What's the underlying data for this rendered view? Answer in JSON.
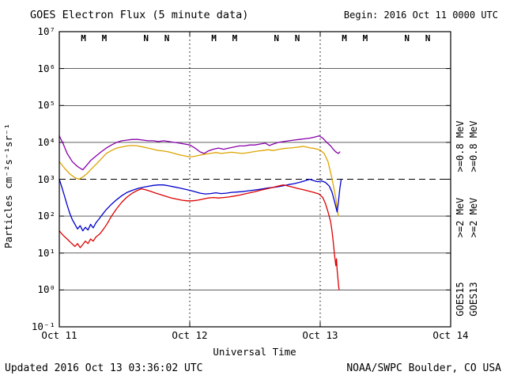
{
  "header": {
    "title": "GOES Electron Flux (5 minute data)",
    "begin_label": "Begin: 2016 Oct 11 0000 UTC"
  },
  "footer": {
    "updated": "Updated 2016 Oct 13 03:36:02 UTC",
    "credit": "NOAA/SWPC Boulder, CO USA"
  },
  "axes": {
    "ylabel": "Particles cm⁻²s⁻¹sr⁻¹",
    "xlabel": "Universal Time",
    "y_ticks": [
      "10⁷",
      "10⁶",
      "10⁵",
      "10⁴",
      "10³",
      "10²",
      "10¹",
      "10⁰",
      "10⁻¹"
    ],
    "x_ticks": [
      "Oct 11",
      "Oct 12",
      "Oct 13",
      "Oct 14"
    ]
  },
  "legend": {
    "goes15": {
      "label": "GOES15",
      "e08": ">=0.8 MeV",
      "e2": ">=2 MeV",
      "e08_color": "#8800aa",
      "e2_color": "#0000cc"
    },
    "goes13": {
      "label": "GOES13",
      "e08": ">=0.8 MeV",
      "e2": ">=2 MeV",
      "e08_color": "#dda400",
      "e2_color": "#dd0000"
    }
  },
  "chart_data": {
    "type": "line",
    "title": "GOES Electron Flux (5 minute data)",
    "xlabel": "Universal Time",
    "ylabel": "Particles cm^-2 s^-1 sr^-1",
    "x_span_days": 3,
    "x_tick_labels": [
      "Oct 11",
      "Oct 12",
      "Oct 13",
      "Oct 14"
    ],
    "y_scale": "log10",
    "ylog_range": [
      -1,
      7
    ],
    "ylim": [
      0.1,
      10000000
    ],
    "threshold": 1000,
    "grid": true,
    "legend_position": "right",
    "series": [
      {
        "name": "GOES15 >=0.8 MeV",
        "color": "#8800aa",
        "points": [
          [
            0.0,
            15000
          ],
          [
            0.03,
            9000
          ],
          [
            0.06,
            5000
          ],
          [
            0.1,
            3000
          ],
          [
            0.14,
            2200
          ],
          [
            0.18,
            1800
          ],
          [
            0.21,
            2400
          ],
          [
            0.24,
            3200
          ],
          [
            0.28,
            4200
          ],
          [
            0.32,
            5500
          ],
          [
            0.36,
            7000
          ],
          [
            0.4,
            8500
          ],
          [
            0.44,
            10000
          ],
          [
            0.48,
            11000
          ],
          [
            0.52,
            11500
          ],
          [
            0.56,
            12000
          ],
          [
            0.6,
            12000
          ],
          [
            0.64,
            11500
          ],
          [
            0.68,
            11000
          ],
          [
            0.72,
            11000
          ],
          [
            0.76,
            10500
          ],
          [
            0.8,
            11000
          ],
          [
            0.84,
            10500
          ],
          [
            0.88,
            10000
          ],
          [
            0.92,
            9500
          ],
          [
            0.96,
            9000
          ],
          [
            1.0,
            8500
          ],
          [
            1.04,
            7000
          ],
          [
            1.08,
            5500
          ],
          [
            1.11,
            5000
          ],
          [
            1.14,
            5800
          ],
          [
            1.18,
            6500
          ],
          [
            1.22,
            7000
          ],
          [
            1.26,
            6500
          ],
          [
            1.3,
            7000
          ],
          [
            1.34,
            7500
          ],
          [
            1.38,
            8000
          ],
          [
            1.42,
            8000
          ],
          [
            1.46,
            8500
          ],
          [
            1.5,
            8500
          ],
          [
            1.54,
            9000
          ],
          [
            1.58,
            9500
          ],
          [
            1.61,
            8200
          ],
          [
            1.64,
            9000
          ],
          [
            1.68,
            10000
          ],
          [
            1.72,
            10500
          ],
          [
            1.76,
            11000
          ],
          [
            1.8,
            11500
          ],
          [
            1.84,
            12000
          ],
          [
            1.88,
            12500
          ],
          [
            1.92,
            13000
          ],
          [
            1.96,
            14000
          ],
          [
            1.99,
            15000
          ],
          [
            2.02,
            13000
          ],
          [
            2.05,
            10000
          ],
          [
            2.08,
            8000
          ],
          [
            2.1,
            6500
          ],
          [
            2.12,
            5500
          ],
          [
            2.14,
            5000
          ],
          [
            2.15,
            5500
          ]
        ]
      },
      {
        "name": "GOES13 >=0.8 MeV",
        "color": "#dda400",
        "points": [
          [
            0.0,
            3000
          ],
          [
            0.04,
            2000
          ],
          [
            0.08,
            1400
          ],
          [
            0.12,
            1100
          ],
          [
            0.15,
            1000
          ],
          [
            0.18,
            1150
          ],
          [
            0.21,
            1400
          ],
          [
            0.24,
            1800
          ],
          [
            0.28,
            2500
          ],
          [
            0.32,
            3500
          ],
          [
            0.36,
            5000
          ],
          [
            0.4,
            6000
          ],
          [
            0.44,
            7000
          ],
          [
            0.48,
            7500
          ],
          [
            0.52,
            8000
          ],
          [
            0.56,
            8200
          ],
          [
            0.6,
            8000
          ],
          [
            0.64,
            7500
          ],
          [
            0.68,
            7000
          ],
          [
            0.72,
            6500
          ],
          [
            0.76,
            6000
          ],
          [
            0.8,
            5800
          ],
          [
            0.84,
            5500
          ],
          [
            0.88,
            5000
          ],
          [
            0.92,
            4600
          ],
          [
            0.96,
            4300
          ],
          [
            1.0,
            4000
          ],
          [
            1.04,
            4200
          ],
          [
            1.08,
            4500
          ],
          [
            1.12,
            4800
          ],
          [
            1.16,
            5000
          ],
          [
            1.2,
            5300
          ],
          [
            1.24,
            5000
          ],
          [
            1.28,
            5200
          ],
          [
            1.32,
            5400
          ],
          [
            1.36,
            5200
          ],
          [
            1.4,
            5000
          ],
          [
            1.44,
            5200
          ],
          [
            1.48,
            5500
          ],
          [
            1.52,
            5800
          ],
          [
            1.56,
            6000
          ],
          [
            1.6,
            6300
          ],
          [
            1.64,
            6000
          ],
          [
            1.68,
            6400
          ],
          [
            1.72,
            6800
          ],
          [
            1.76,
            7000
          ],
          [
            1.8,
            7200
          ],
          [
            1.84,
            7500
          ],
          [
            1.87,
            7800
          ],
          [
            1.9,
            7400
          ],
          [
            1.93,
            7000
          ],
          [
            1.96,
            6800
          ],
          [
            2.0,
            6200
          ],
          [
            2.03,
            5000
          ],
          [
            2.06,
            3000
          ],
          [
            2.08,
            1500
          ],
          [
            2.1,
            700
          ],
          [
            2.12,
            300
          ],
          [
            2.13,
            150
          ],
          [
            2.14,
            100
          ]
        ]
      },
      {
        "name": "GOES15 >=2 MeV",
        "color": "#0000cc",
        "points": [
          [
            0.0,
            1000
          ],
          [
            0.02,
            600
          ],
          [
            0.04,
            350
          ],
          [
            0.06,
            200
          ],
          [
            0.08,
            120
          ],
          [
            0.1,
            80
          ],
          [
            0.12,
            60
          ],
          [
            0.14,
            45
          ],
          [
            0.16,
            55
          ],
          [
            0.18,
            40
          ],
          [
            0.2,
            50
          ],
          [
            0.22,
            42
          ],
          [
            0.24,
            60
          ],
          [
            0.26,
            48
          ],
          [
            0.28,
            65
          ],
          [
            0.3,
            80
          ],
          [
            0.33,
            110
          ],
          [
            0.36,
            150
          ],
          [
            0.4,
            210
          ],
          [
            0.44,
            280
          ],
          [
            0.48,
            360
          ],
          [
            0.52,
            440
          ],
          [
            0.56,
            500
          ],
          [
            0.6,
            560
          ],
          [
            0.64,
            600
          ],
          [
            0.68,
            640
          ],
          [
            0.72,
            680
          ],
          [
            0.76,
            700
          ],
          [
            0.8,
            700
          ],
          [
            0.84,
            660
          ],
          [
            0.88,
            620
          ],
          [
            0.92,
            580
          ],
          [
            0.96,
            540
          ],
          [
            1.0,
            500
          ],
          [
            1.04,
            460
          ],
          [
            1.08,
            420
          ],
          [
            1.12,
            400
          ],
          [
            1.16,
            410
          ],
          [
            1.2,
            430
          ],
          [
            1.24,
            410
          ],
          [
            1.28,
            420
          ],
          [
            1.32,
            440
          ],
          [
            1.36,
            450
          ],
          [
            1.4,
            460
          ],
          [
            1.44,
            480
          ],
          [
            1.48,
            500
          ],
          [
            1.52,
            520
          ],
          [
            1.56,
            550
          ],
          [
            1.6,
            580
          ],
          [
            1.64,
            600
          ],
          [
            1.68,
            630
          ],
          [
            1.72,
            670
          ],
          [
            1.76,
            720
          ],
          [
            1.8,
            760
          ],
          [
            1.84,
            820
          ],
          [
            1.88,
            900
          ],
          [
            1.92,
            1000
          ],
          [
            1.95,
            920
          ],
          [
            1.98,
            860
          ],
          [
            2.01,
            900
          ],
          [
            2.04,
            820
          ],
          [
            2.07,
            650
          ],
          [
            2.09,
            450
          ],
          [
            2.11,
            250
          ],
          [
            2.13,
            130
          ],
          [
            2.14,
            250
          ],
          [
            2.15,
            550
          ],
          [
            2.16,
            950
          ]
        ]
      },
      {
        "name": "GOES13 >=2 MeV",
        "color": "#dd0000",
        "points": [
          [
            0.0,
            40
          ],
          [
            0.03,
            30
          ],
          [
            0.06,
            24
          ],
          [
            0.09,
            19
          ],
          [
            0.12,
            15
          ],
          [
            0.14,
            18
          ],
          [
            0.16,
            14
          ],
          [
            0.18,
            17
          ],
          [
            0.2,
            21
          ],
          [
            0.22,
            18
          ],
          [
            0.24,
            24
          ],
          [
            0.26,
            21
          ],
          [
            0.28,
            27
          ],
          [
            0.31,
            33
          ],
          [
            0.34,
            45
          ],
          [
            0.37,
            65
          ],
          [
            0.4,
            100
          ],
          [
            0.44,
            160
          ],
          [
            0.48,
            240
          ],
          [
            0.52,
            330
          ],
          [
            0.56,
            420
          ],
          [
            0.6,
            500
          ],
          [
            0.63,
            550
          ],
          [
            0.66,
            520
          ],
          [
            0.7,
            470
          ],
          [
            0.74,
            420
          ],
          [
            0.78,
            380
          ],
          [
            0.82,
            340
          ],
          [
            0.86,
            310
          ],
          [
            0.9,
            290
          ],
          [
            0.94,
            270
          ],
          [
            0.98,
            260
          ],
          [
            1.02,
            260
          ],
          [
            1.06,
            270
          ],
          [
            1.1,
            290
          ],
          [
            1.14,
            310
          ],
          [
            1.18,
            320
          ],
          [
            1.22,
            310
          ],
          [
            1.26,
            320
          ],
          [
            1.3,
            330
          ],
          [
            1.34,
            350
          ],
          [
            1.38,
            370
          ],
          [
            1.42,
            400
          ],
          [
            1.46,
            430
          ],
          [
            1.5,
            460
          ],
          [
            1.54,
            500
          ],
          [
            1.58,
            540
          ],
          [
            1.62,
            580
          ],
          [
            1.66,
            630
          ],
          [
            1.7,
            680
          ],
          [
            1.72,
            700
          ],
          [
            1.75,
            660
          ],
          [
            1.79,
            610
          ],
          [
            1.83,
            560
          ],
          [
            1.87,
            520
          ],
          [
            1.91,
            480
          ],
          [
            1.95,
            440
          ],
          [
            1.99,
            400
          ],
          [
            2.02,
            320
          ],
          [
            2.04,
            220
          ],
          [
            2.06,
            130
          ],
          [
            2.08,
            70
          ],
          [
            2.09,
            40
          ],
          [
            2.1,
            20
          ],
          [
            2.11,
            9
          ],
          [
            2.12,
            4.5
          ],
          [
            2.125,
            7
          ],
          [
            2.13,
            3.5
          ],
          [
            2.135,
            2.2
          ],
          [
            2.14,
            1.4
          ],
          [
            2.145,
            1.0
          ]
        ]
      }
    ],
    "day_markers": [
      {
        "label": "M",
        "color": "#cc0000",
        "day": 0.185
      },
      {
        "label": "M",
        "color": "#0000cc",
        "day": 0.345
      },
      {
        "label": "N",
        "color": "#cc0000",
        "day": 0.665
      },
      {
        "label": "N",
        "color": "#0000cc",
        "day": 0.825
      },
      {
        "label": "M",
        "color": "#cc0000",
        "day": 1.185
      },
      {
        "label": "M",
        "color": "#0000cc",
        "day": 1.345
      },
      {
        "label": "N",
        "color": "#cc0000",
        "day": 1.665
      },
      {
        "label": "N",
        "color": "#0000cc",
        "day": 1.825
      },
      {
        "label": "M",
        "color": "#cc0000",
        "day": 2.185
      },
      {
        "label": "M",
        "color": "#0000cc",
        "day": 2.345
      },
      {
        "label": "N",
        "color": "#cc0000",
        "day": 2.665
      },
      {
        "label": "N",
        "color": "#0000cc",
        "day": 2.825
      }
    ]
  }
}
